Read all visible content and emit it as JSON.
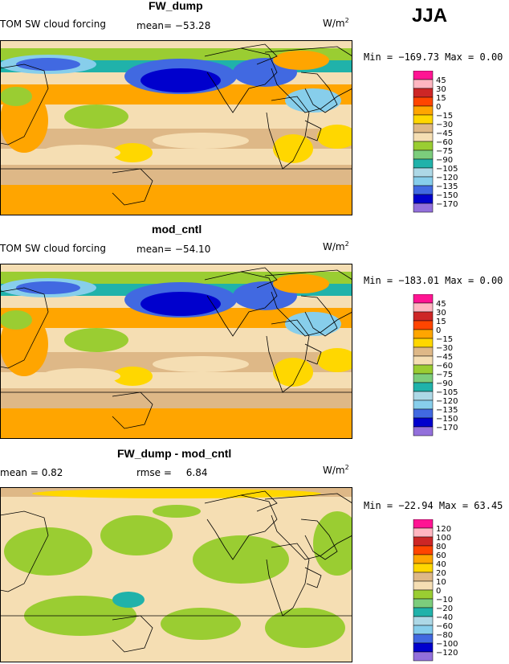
{
  "season": "JJA",
  "panels": [
    {
      "title": "FW_dump",
      "left_label": "TOM SW cloud forcing",
      "mean_label": "mean=",
      "mean_value": "−53.28",
      "units_base": "W/m",
      "units_exp": "2",
      "minmax": "Min = −169.73 Max =    0.00"
    },
    {
      "title": "mod_cntl",
      "left_label": "TOM SW cloud forcing",
      "mean_label": "mean=",
      "mean_value": "−54.10",
      "units_base": "W/m",
      "units_exp": "2",
      "minmax": "Min = −183.01 Max =    0.00"
    },
    {
      "title": "FW_dump - mod_cntl",
      "left_label": "mean =    0.82",
      "mean_label": "rmse =",
      "mean_value": "6.84",
      "units_base": "W/m",
      "units_exp": "2",
      "minmax": "Min = −22.94 Max =  63.45"
    }
  ],
  "colorbars": [
    {
      "labels": [
        "45",
        "30",
        "15",
        "0",
        "−15",
        "−30",
        "−45",
        "−60",
        "−75",
        "−90",
        "−105",
        "−120",
        "−135",
        "−150",
        "−170"
      ],
      "colors": [
        "#ff1493",
        "#ffb6c1",
        "#cd2626",
        "#ff4500",
        "#ffa500",
        "#ffd700",
        "#deb887",
        "#f5deb3",
        "#9acd32",
        "#7ccd7c",
        "#20b2aa",
        "#add8e6",
        "#87ceeb",
        "#4169e1",
        "#0000cd",
        "#9370db"
      ]
    },
    {
      "labels": [
        "45",
        "30",
        "15",
        "0",
        "−15",
        "−30",
        "−45",
        "−60",
        "−75",
        "−90",
        "−105",
        "−120",
        "−135",
        "−150",
        "−170"
      ],
      "colors": [
        "#ff1493",
        "#ffb6c1",
        "#cd2626",
        "#ff4500",
        "#ffa500",
        "#ffd700",
        "#deb887",
        "#f5deb3",
        "#9acd32",
        "#7ccd7c",
        "#20b2aa",
        "#add8e6",
        "#87ceeb",
        "#4169e1",
        "#0000cd",
        "#9370db"
      ]
    },
    {
      "labels": [
        "120",
        "100",
        "80",
        "60",
        "40",
        "20",
        "10",
        "0",
        "−10",
        "−20",
        "−40",
        "−60",
        "−80",
        "−100",
        "−120"
      ],
      "colors": [
        "#ff1493",
        "#ffb6c1",
        "#cd2626",
        "#ff4500",
        "#ffa500",
        "#ffd700",
        "#deb887",
        "#f5deb3",
        "#9acd32",
        "#7ccd7c",
        "#20b2aa",
        "#add8e6",
        "#87ceeb",
        "#4169e1",
        "#0000cd",
        "#9370db"
      ]
    }
  ],
  "chart_data": {
    "type": "heatmap",
    "title": "JJA",
    "variable": "TOM SW cloud forcing",
    "units": "W/m2",
    "fields": [
      {
        "name": "FW_dump",
        "mean": -53.28,
        "min": -169.73,
        "max": 0.0
      },
      {
        "name": "mod_cntl",
        "mean": -54.1,
        "min": -183.01,
        "max": 0.0
      },
      {
        "name": "FW_dump - mod_cntl",
        "mean": 0.82,
        "rmse": 6.84,
        "min": -22.94,
        "max": 63.45
      }
    ],
    "contour_levels_fields": [
      45,
      30,
      15,
      0,
      -15,
      -30,
      -45,
      -60,
      -75,
      -90,
      -105,
      -120,
      -135,
      -150,
      -170
    ],
    "contour_levels_difference": [
      120,
      100,
      80,
      60,
      40,
      20,
      10,
      0,
      -10,
      -20,
      -40,
      -60,
      -80,
      -100,
      -120
    ]
  }
}
